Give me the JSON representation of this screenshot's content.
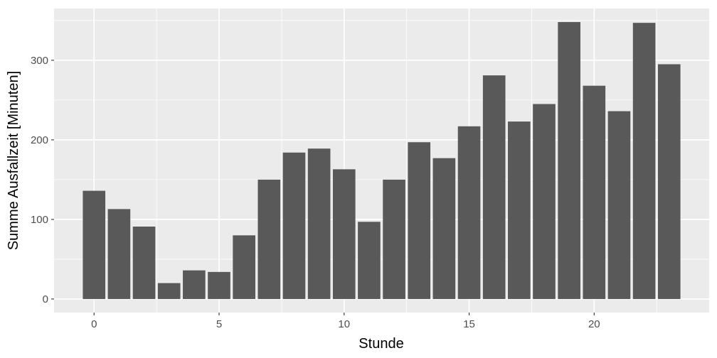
{
  "chart_data": {
    "type": "bar",
    "title": "",
    "xlabel": "Stunde",
    "ylabel": "Summe Ausfallzeit [Minuten]",
    "x": [
      0,
      1,
      2,
      3,
      4,
      5,
      6,
      7,
      8,
      9,
      10,
      11,
      12,
      13,
      14,
      15,
      16,
      17,
      18,
      19,
      20,
      21,
      22,
      23
    ],
    "values": [
      136,
      113,
      91,
      20,
      36,
      34,
      80,
      150,
      184,
      189,
      163,
      97,
      150,
      197,
      177,
      217,
      281,
      223,
      245,
      348,
      268,
      236,
      347,
      295
    ],
    "xlim": [
      -1.6,
      24.6
    ],
    "ylim": [
      -17,
      365
    ],
    "x_ticks": [
      0,
      5,
      10,
      15,
      20
    ],
    "y_ticks": [
      0,
      100,
      200,
      300
    ],
    "x_tick_labels": [
      "0",
      "5",
      "10",
      "15",
      "20"
    ],
    "y_tick_labels": [
      "0",
      "100",
      "200",
      "300"
    ],
    "grid": true,
    "bar_color": "#595959",
    "panel_background": "#ebebeb",
    "grid_color": "#ffffff"
  }
}
